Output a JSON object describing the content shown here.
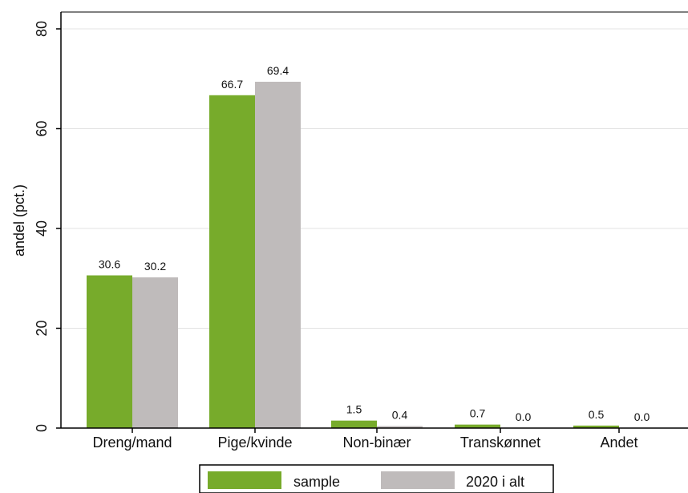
{
  "chart_data": {
    "type": "bar",
    "title": "",
    "xlabel": "",
    "ylabel": "andel (pct.)",
    "ylim": [
      0,
      80
    ],
    "yticks": [
      0,
      20,
      40,
      60,
      80
    ],
    "grid": true,
    "legend_position": "bottom",
    "categories": [
      "Dreng/mand",
      "Pige/kvinde",
      "Non-binær",
      "Transkønnet",
      "Andet"
    ],
    "series": [
      {
        "name": "sample",
        "color": "#77ab2b",
        "values": [
          30.6,
          66.7,
          1.5,
          0.7,
          0.5
        ],
        "labels": [
          "30.6",
          "66.7",
          "1.5",
          "0.7",
          "0.5"
        ]
      },
      {
        "name": "2020 i alt",
        "color": "#bfbbbb",
        "values": [
          30.2,
          69.4,
          0.4,
          0.0,
          0.0
        ],
        "labels": [
          "30.2",
          "69.4",
          "0.4",
          "0.0",
          "0.0"
        ]
      }
    ]
  }
}
